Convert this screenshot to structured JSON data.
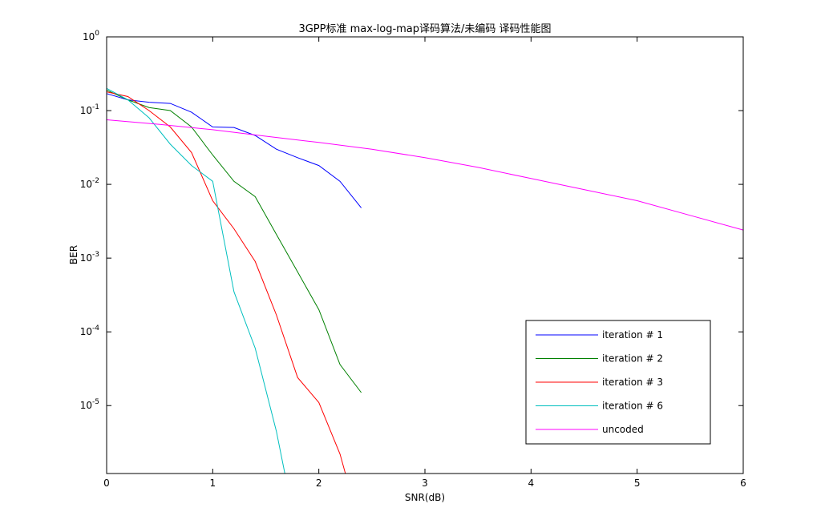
{
  "chart_data": {
    "type": "line",
    "title": "3GPP标准 max-log-map译码算法/未编码 译码性能图",
    "xlabel": "SNR(dB)",
    "ylabel": "BER",
    "xlim": [
      0,
      6
    ],
    "ylim": [
      1.2e-06,
      1
    ],
    "yscale": "log",
    "grid": false,
    "legend_position": "bottom-right",
    "x_ticks": [
      0,
      1,
      2,
      3,
      4,
      5,
      6
    ],
    "x_tick_labels": [
      "0",
      "1",
      "2",
      "3",
      "4",
      "5",
      "6"
    ],
    "y_ticks": [
      {
        "value": 1,
        "base": "10",
        "exp": "0"
      },
      {
        "value": 0.1,
        "base": "10",
        "exp": "-1"
      },
      {
        "value": 0.01,
        "base": "10",
        "exp": "-2"
      },
      {
        "value": 0.001,
        "base": "10",
        "exp": "-3"
      },
      {
        "value": 0.0001,
        "base": "10",
        "exp": "-4"
      },
      {
        "value": 1e-05,
        "base": "10",
        "exp": "-5"
      }
    ],
    "series": [
      {
        "name": "iteration # 1",
        "color": "#0000ff",
        "x": [
          0,
          0.2,
          0.4,
          0.6,
          0.8,
          1.0,
          1.2,
          1.4,
          1.6,
          1.8,
          2.0,
          2.2,
          2.4
        ],
        "y": [
          0.17,
          0.14,
          0.13,
          0.125,
          0.095,
          0.06,
          0.059,
          0.046,
          0.03,
          0.023,
          0.018,
          0.011,
          0.0048
        ]
      },
      {
        "name": "iteration # 2",
        "color": "#008000",
        "x": [
          0,
          0.2,
          0.4,
          0.6,
          0.8,
          1.0,
          1.2,
          1.4,
          1.6,
          1.8,
          2.0,
          2.2,
          2.4
        ],
        "y": [
          0.19,
          0.14,
          0.11,
          0.1,
          0.06,
          0.025,
          0.011,
          0.0068,
          0.0021,
          0.00065,
          0.0002,
          3.6e-05,
          1.5e-05
        ]
      },
      {
        "name": "iteration # 3",
        "color": "#ff0000",
        "x": [
          0,
          0.2,
          0.4,
          0.6,
          0.8,
          1.0,
          1.2,
          1.4,
          1.6,
          1.8,
          2.0,
          2.2,
          2.25
        ],
        "y": [
          0.18,
          0.155,
          0.1,
          0.06,
          0.027,
          0.006,
          0.0025,
          0.0009,
          0.00017,
          2.4e-05,
          1.1e-05,
          2.2e-06,
          1.2e-06
        ]
      },
      {
        "name": "iteration # 6",
        "color": "#00bfbf",
        "x": [
          0,
          0.2,
          0.4,
          0.6,
          0.8,
          1.0,
          1.2,
          1.4,
          1.6,
          1.68
        ],
        "y": [
          0.2,
          0.14,
          0.08,
          0.035,
          0.018,
          0.011,
          0.00035,
          6e-05,
          4.5e-06,
          1.2e-06
        ]
      },
      {
        "name": "uncoded",
        "color": "#ff00ff",
        "x": [
          0,
          0.5,
          1.0,
          1.5,
          2.0,
          2.5,
          3.0,
          3.5,
          4.0,
          4.5,
          5.0,
          5.5,
          6.0
        ],
        "y": [
          0.075,
          0.065,
          0.055,
          0.045,
          0.037,
          0.03,
          0.023,
          0.017,
          0.012,
          0.0085,
          0.006,
          0.0038,
          0.0024
        ]
      }
    ]
  }
}
